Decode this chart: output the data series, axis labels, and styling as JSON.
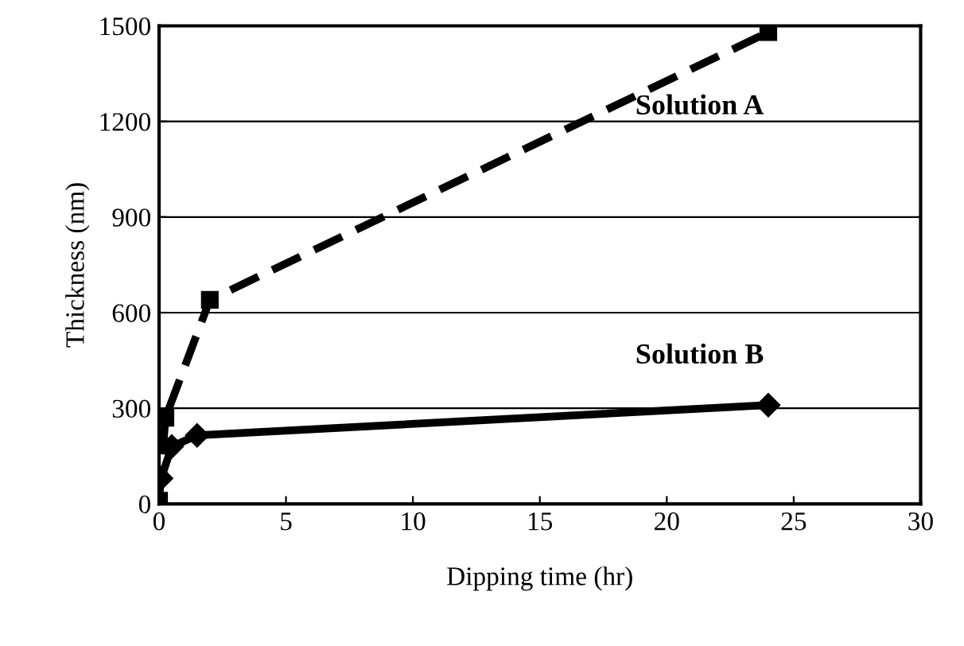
{
  "chart_data": {
    "type": "line",
    "xlabel": "Dipping time (hr)",
    "ylabel": "Thickness (nm)",
    "xlim": [
      0,
      30
    ],
    "xticks": [
      0,
      5,
      10,
      15,
      20,
      25,
      30
    ],
    "ylim": [
      0,
      1500
    ],
    "yticks": [
      0,
      300,
      600,
      900,
      1200,
      1500
    ],
    "grid": "y",
    "legend": false,
    "series": [
      {
        "name": "Solution A",
        "color": "#000000",
        "line_style": "dashed",
        "marker": "square",
        "x": [
          0,
          0.25,
          2,
          24
        ],
        "values": [
          10,
          270,
          640,
          1480
        ]
      },
      {
        "name": "Solution B",
        "color": "#000000",
        "line_style": "solid",
        "marker": "diamond",
        "x": [
          0.08,
          0.5,
          1.5,
          24
        ],
        "values": [
          80,
          180,
          215,
          310
        ]
      }
    ]
  }
}
